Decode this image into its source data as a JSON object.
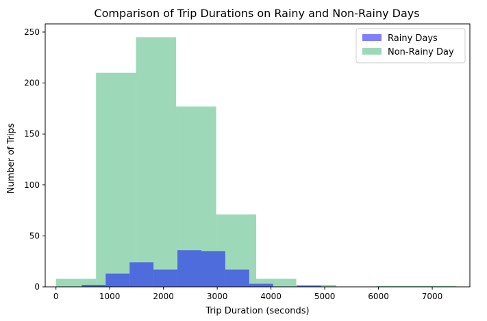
{
  "chart_data": {
    "type": "bar",
    "title": "Comparison of Trip Durations on Rainy and Non-Rainy Days",
    "xlabel": "Trip Duration (seconds)",
    "ylabel": "Number of Trips",
    "xlim": [
      -200,
      7700
    ],
    "ylim": [
      0,
      258
    ],
    "xticks": [
      0,
      1000,
      2000,
      3000,
      4000,
      5000,
      6000,
      7000
    ],
    "yticks": [
      0,
      50,
      100,
      150,
      200,
      250
    ],
    "grid": false,
    "legend_position": "top-right",
    "series": [
      {
        "name": "Non-Rainy Day",
        "color": "#3cb371",
        "opacity": 0.5,
        "bins": [
          {
            "x0": 0,
            "x1": 745,
            "value": 8
          },
          {
            "x0": 745,
            "x1": 1490,
            "value": 210
          },
          {
            "x0": 1490,
            "x1": 2235,
            "value": 245
          },
          {
            "x0": 2235,
            "x1": 2980,
            "value": 177
          },
          {
            "x0": 2980,
            "x1": 3725,
            "value": 71
          },
          {
            "x0": 3725,
            "x1": 4470,
            "value": 8
          },
          {
            "x0": 4470,
            "x1": 5215,
            "value": 2
          },
          {
            "x0": 5215,
            "x1": 5960,
            "value": 0
          },
          {
            "x0": 5960,
            "x1": 6705,
            "value": 1
          },
          {
            "x0": 6705,
            "x1": 7450,
            "value": 1
          }
        ]
      },
      {
        "name": "Rainy Days",
        "color": "#0000ff",
        "opacity": 0.5,
        "bins": [
          {
            "x0": 480,
            "x1": 925,
            "value": 2
          },
          {
            "x0": 925,
            "x1": 1370,
            "value": 13
          },
          {
            "x0": 1370,
            "x1": 1815,
            "value": 24
          },
          {
            "x0": 1815,
            "x1": 2260,
            "value": 17
          },
          {
            "x0": 2260,
            "x1": 2705,
            "value": 36
          },
          {
            "x0": 2705,
            "x1": 3150,
            "value": 35
          },
          {
            "x0": 3150,
            "x1": 3595,
            "value": 17
          },
          {
            "x0": 3595,
            "x1": 4040,
            "value": 3
          },
          {
            "x0": 4040,
            "x1": 4485,
            "value": 0
          },
          {
            "x0": 4485,
            "x1": 4930,
            "value": 1
          }
        ]
      }
    ],
    "legend_order": [
      "Rainy Days",
      "Non-Rainy Day"
    ]
  }
}
